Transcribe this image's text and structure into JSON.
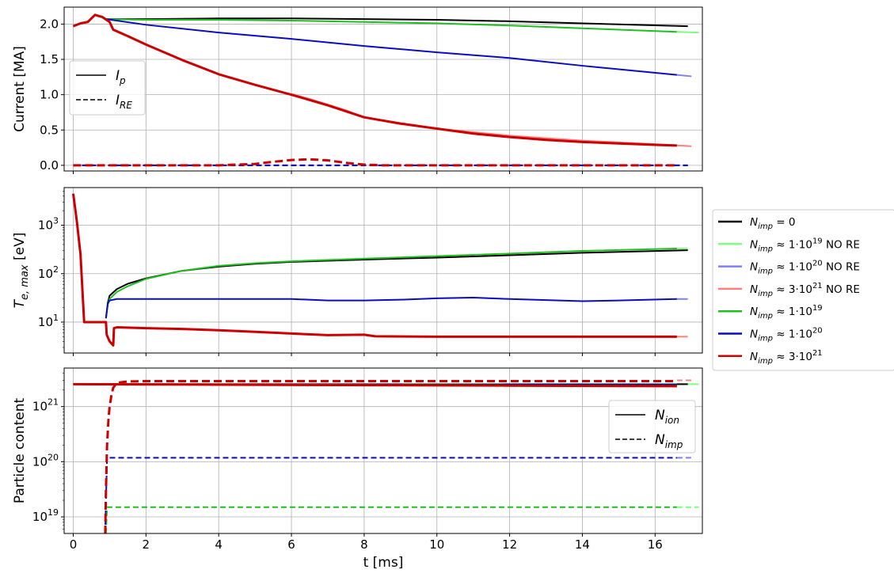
{
  "chart_data": [
    {
      "type": "line",
      "ylabel": "Current [MA]",
      "xlim": [
        -0.25,
        17.3
      ],
      "ylim": [
        -0.08,
        2.24
      ],
      "yscale": "linear",
      "grid": true,
      "xticks": [
        0,
        2,
        4,
        6,
        8,
        10,
        12,
        14,
        16
      ],
      "yticks": [
        {
          "v": 0.0,
          "label": "0.0"
        },
        {
          "v": 0.5,
          "label": "0.5"
        },
        {
          "v": 1.0,
          "label": "1.0"
        },
        {
          "v": 1.5,
          "label": "1.5"
        },
        {
          "v": 2.0,
          "label": "2.0"
        }
      ],
      "legend": {
        "placement": "center-left",
        "entries": [
          {
            "label": "I",
            "sub": "p",
            "dash": "solid"
          },
          {
            "label": "I",
            "sub": "RE",
            "dash": "dashed"
          }
        ]
      },
      "series": [
        {
          "color": "#ff7f7f",
          "width": 2,
          "dash": "solid",
          "x": [
            6.0,
            6.5,
            7.0,
            7.5,
            8.0,
            10,
            12,
            14,
            16,
            17.0
          ],
          "y": [
            1.01,
            0.94,
            0.86,
            0.78,
            0.68,
            0.52,
            0.42,
            0.35,
            0.3,
            0.27
          ]
        },
        {
          "color": "#7f7fff",
          "width": 2,
          "dash": "solid",
          "x": [
            16.6,
            17.0
          ],
          "y": [
            1.28,
            1.26
          ]
        },
        {
          "color": "#7fff7f",
          "width": 2,
          "dash": "solid",
          "x": [
            16.6,
            17.2
          ],
          "y": [
            1.89,
            1.88
          ]
        },
        {
          "color": "#000000",
          "width": 2,
          "dash": "solid",
          "x": [
            0.9,
            2,
            4,
            6,
            8,
            10,
            12,
            14,
            16.9
          ],
          "y": [
            2.07,
            2.07,
            2.08,
            2.08,
            2.07,
            2.06,
            2.04,
            2.01,
            1.97
          ]
        },
        {
          "color": "#1fbf1f",
          "width": 2,
          "dash": "solid",
          "x": [
            0.9,
            2,
            4,
            6,
            8,
            10,
            12,
            14,
            16.6
          ],
          "y": [
            2.07,
            2.06,
            2.06,
            2.05,
            2.03,
            2.01,
            1.98,
            1.94,
            1.89
          ]
        },
        {
          "color": "#0b0bbf",
          "width": 2,
          "dash": "solid",
          "x": [
            0.9,
            2,
            4,
            6,
            8,
            10,
            12,
            14,
            16.6
          ],
          "y": [
            2.07,
            1.99,
            1.88,
            1.79,
            1.69,
            1.6,
            1.52,
            1.41,
            1.28
          ]
        },
        {
          "color": "#cc0000",
          "width": 3,
          "dash": "solid",
          "x": [
            0,
            0.2,
            0.4,
            0.6,
            0.8,
            1.0,
            1.1,
            1.5,
            2,
            3,
            4,
            5,
            6,
            7,
            8,
            9,
            10,
            11,
            12,
            13,
            14,
            15,
            16,
            16.6
          ],
          "y": [
            1.97,
            2.01,
            2.03,
            2.13,
            2.1,
            2.03,
            1.92,
            1.83,
            1.71,
            1.49,
            1.29,
            1.14,
            1.0,
            0.85,
            0.68,
            0.59,
            0.52,
            0.45,
            0.4,
            0.36,
            0.33,
            0.31,
            0.29,
            0.28
          ]
        },
        {
          "color": "#000000",
          "width": 2,
          "dash": "dashed",
          "x": [
            0,
            16.9
          ],
          "y": [
            0.0,
            0.0
          ]
        },
        {
          "color": "#0b0bbf",
          "width": 2,
          "dash": "dashed",
          "x": [
            0,
            16.9
          ],
          "y": [
            0.0,
            0.0
          ]
        },
        {
          "color": "#cc0000",
          "width": 3,
          "dash": "dashed",
          "x": [
            0,
            4,
            5,
            5.5,
            6,
            6.5,
            7,
            7.5,
            8,
            8.5,
            16.6
          ],
          "y": [
            0.0,
            0.0,
            0.02,
            0.05,
            0.075,
            0.085,
            0.07,
            0.035,
            0.01,
            0.0,
            0.0
          ]
        }
      ]
    },
    {
      "type": "line",
      "ylabel_base": "T",
      "ylabel_sub": "e, max",
      "ylabel_unit": " [eV]",
      "xlim": [
        -0.25,
        17.3
      ],
      "ylim": [
        2.3,
        6000
      ],
      "yscale": "log",
      "grid": true,
      "xticks": [
        0,
        2,
        4,
        6,
        8,
        10,
        12,
        14,
        16
      ],
      "yticks": [
        {
          "v": 10,
          "base": "10",
          "exp": "1"
        },
        {
          "v": 100,
          "base": "10",
          "exp": "2"
        },
        {
          "v": 1000,
          "base": "10",
          "exp": "3"
        }
      ],
      "series": [
        {
          "color": "#ff7f7f",
          "width": 2,
          "dash": "solid",
          "x": [
            16.6,
            16.9
          ],
          "y": [
            5.0,
            5.0
          ]
        },
        {
          "color": "#7f7fff",
          "width": 2,
          "dash": "solid",
          "x": [
            16.6,
            16.9
          ],
          "y": [
            30,
            30
          ]
        },
        {
          "color": "#7fff7f",
          "width": 2,
          "dash": "solid",
          "x": [
            16.6,
            16.9
          ],
          "y": [
            330,
            330
          ]
        },
        {
          "color": "#000000",
          "width": 2,
          "dash": "solid",
          "x": [
            0.9,
            0.95,
            1.0,
            1.2,
            1.5,
            2,
            3,
            4,
            5,
            6,
            8,
            10,
            12,
            14,
            16.9
          ],
          "y": [
            12,
            25,
            35,
            48,
            62,
            80,
            115,
            140,
            160,
            175,
            195,
            215,
            240,
            270,
            305
          ]
        },
        {
          "color": "#1fbf1f",
          "width": 2,
          "dash": "solid",
          "x": [
            0.9,
            0.95,
            1.0,
            1.2,
            1.5,
            2,
            3,
            4,
            5,
            6,
            8,
            10,
            12,
            14,
            16.6
          ],
          "y": [
            12,
            23,
            30,
            42,
            55,
            78,
            115,
            145,
            165,
            180,
            205,
            230,
            260,
            295,
            330
          ]
        },
        {
          "color": "#0b0bbf",
          "width": 2,
          "dash": "solid",
          "x": [
            0.9,
            0.95,
            1.0,
            1.2,
            2,
            4,
            6,
            7,
            8,
            9,
            10,
            11,
            12,
            14,
            15,
            16.6
          ],
          "y": [
            12,
            24,
            28,
            30,
            30,
            30,
            30,
            28,
            28,
            29,
            31,
            32,
            30,
            27,
            28,
            30
          ]
        },
        {
          "color": "#cc0000",
          "width": 3,
          "dash": "solid",
          "x": [
            0,
            0.1,
            0.2,
            0.3,
            0.5,
            0.9,
            0.92,
            1.0,
            1.1,
            1.12,
            1.2,
            2,
            3,
            4,
            5,
            6,
            7,
            8,
            8.3,
            10,
            12,
            14,
            16.6
          ],
          "y": [
            4500,
            1200,
            250,
            10,
            10,
            10,
            5.5,
            4.0,
            3.3,
            7.5,
            7.8,
            7.5,
            7.2,
            6.8,
            6.3,
            5.8,
            5.4,
            5.5,
            5.1,
            5.0,
            5.0,
            5.0,
            5.0
          ]
        }
      ]
    },
    {
      "type": "line",
      "xlabel": "t [ms]",
      "ylabel": "Particle content",
      "xlim": [
        -0.25,
        17.3
      ],
      "ylim": [
        5e+18,
        5e+21
      ],
      "yscale": "log",
      "grid": true,
      "xticks": [
        0,
        2,
        4,
        6,
        8,
        10,
        12,
        14,
        16
      ],
      "yticks": [
        {
          "v": 1e+19,
          "base": "10",
          "exp": "19"
        },
        {
          "v": 1e+20,
          "base": "10",
          "exp": "20"
        },
        {
          "v": 1e+21,
          "base": "10",
          "exp": "21"
        }
      ],
      "legend": {
        "placement": "center-right",
        "entries": [
          {
            "label": "N",
            "sub": "ion",
            "dash": "solid"
          },
          {
            "label": "N",
            "sub": "imp",
            "dash": "dashed"
          }
        ]
      },
      "series": [
        {
          "color": "#7fff7f",
          "width": 2,
          "dash": "solid",
          "x": [
            16.6,
            17.2
          ],
          "y": [
            2.55e+21,
            2.55e+21
          ]
        },
        {
          "color": "#7fff7f",
          "width": 2,
          "dash": "dashed",
          "x": [
            16.6,
            17.2
          ],
          "y": [
            1.5e+19,
            1.5e+19
          ]
        },
        {
          "color": "#7f7fff",
          "width": 2,
          "dash": "dashed",
          "x": [
            16.6,
            17.0
          ],
          "y": [
            1.18e+20,
            1.18e+20
          ]
        },
        {
          "color": "#ff7f7f",
          "width": 2,
          "dash": "dashed",
          "x": [
            16.6,
            17.0
          ],
          "y": [
            3e+21,
            3e+21
          ]
        },
        {
          "color": "#000000",
          "width": 2,
          "dash": "solid",
          "x": [
            0,
            16.9
          ],
          "y": [
            2.55e+21,
            2.55e+21
          ]
        },
        {
          "color": "#1fbf1f",
          "width": 2,
          "dash": "solid",
          "x": [
            0,
            16.6
          ],
          "y": [
            2.55e+21,
            2.55e+21
          ]
        },
        {
          "color": "#0b0bbf",
          "width": 2,
          "dash": "solid",
          "x": [
            0,
            16.6
          ],
          "y": [
            2.55e+21,
            2.5e+21
          ]
        },
        {
          "color": "#cc0000",
          "width": 3,
          "dash": "solid",
          "x": [
            0,
            4,
            8,
            12,
            16.6
          ],
          "y": [
            2.55e+21,
            2.5e+21,
            2.45e+21,
            2.4e+21,
            2.35e+21
          ]
        },
        {
          "color": "#1fbf1f",
          "width": 2,
          "dash": "dashed",
          "x": [
            0.9,
            0.93,
            16.6
          ],
          "y": [
            5e+18,
            1.5e+19,
            1.5e+19
          ]
        },
        {
          "color": "#0b0bbf",
          "width": 2,
          "dash": "dashed",
          "x": [
            0.88,
            0.9,
            0.93,
            16.6
          ],
          "y": [
            5e+18,
            2e+19,
            1.18e+20,
            1.18e+20
          ]
        },
        {
          "color": "#cc0000",
          "width": 3,
          "dash": "dashed",
          "x": [
            0.88,
            0.9,
            0.93,
            0.97,
            1.0,
            1.05,
            1.1,
            1.2,
            1.5,
            2,
            16.6
          ],
          "y": [
            5e+18,
            3e+19,
            2e+20,
            6e+20,
            1e+21,
            1.6e+21,
            2.2e+21,
            2.7e+21,
            2.85e+21,
            2.9e+21,
            2.9e+21
          ]
        }
      ]
    }
  ],
  "series_legend": [
    {
      "base": "N",
      "sub": "imp",
      "rel": " = 0",
      "color": "#000000"
    },
    {
      "base": "N",
      "sub": "imp",
      "rel": " ≈ 1·10",
      "exp": "19",
      "tail": " NO RE",
      "color": "#7fff7f"
    },
    {
      "base": "N",
      "sub": "imp",
      "rel": " ≈ 1·10",
      "exp": "20",
      "tail": " NO RE",
      "color": "#7f7fff"
    },
    {
      "base": "N",
      "sub": "imp",
      "rel": " ≈ 3·10",
      "exp": "21",
      "tail": " NO RE",
      "color": "#ff7f7f"
    },
    {
      "base": "N",
      "sub": "imp",
      "rel": " ≈ 1·10",
      "exp": "19",
      "color": "#1fbf1f"
    },
    {
      "base": "N",
      "sub": "imp",
      "rel": " ≈ 1·10",
      "exp": "20",
      "color": "#0b0bbf"
    },
    {
      "base": "N",
      "sub": "imp",
      "rel": " ≈ 3·10",
      "exp": "21",
      "color": "#cc0000"
    }
  ]
}
